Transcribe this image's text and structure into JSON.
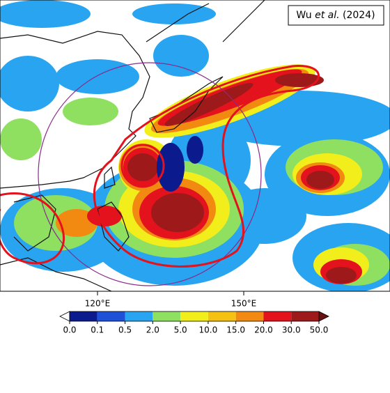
{
  "map": {
    "attribution": {
      "author": "Wu ",
      "etal": "et al.",
      "year": " (2024)"
    },
    "lonlim": [
      100,
      180
    ],
    "lon_ticks": [
      {
        "value": 120,
        "label": "120°E"
      },
      {
        "value": 150,
        "label": "150°E"
      }
    ],
    "colorbar": {
      "levels": [
        {
          "value": 0,
          "label": "0.0"
        },
        {
          "value": 0.1,
          "label": "0.1"
        },
        {
          "value": 0.5,
          "label": "0.5"
        },
        {
          "value": 2,
          "label": "2.0"
        },
        {
          "value": 5,
          "label": "5.0"
        },
        {
          "value": 10,
          "label": "10.0"
        },
        {
          "value": 15,
          "label": "15.0"
        },
        {
          "value": 20,
          "label": "20.0"
        },
        {
          "value": 30,
          "label": "30.0"
        },
        {
          "value": 50,
          "label": "50.0"
        }
      ],
      "colors": [
        "#0b1a8c",
        "#1f50d8",
        "#28a4f0",
        "#8fe060",
        "#f2ee1c",
        "#f5c214",
        "#f28a12",
        "#e3121c",
        "#9e1a1a"
      ],
      "under_color": "#ffffff",
      "over_color": "#6a1010"
    }
  }
}
